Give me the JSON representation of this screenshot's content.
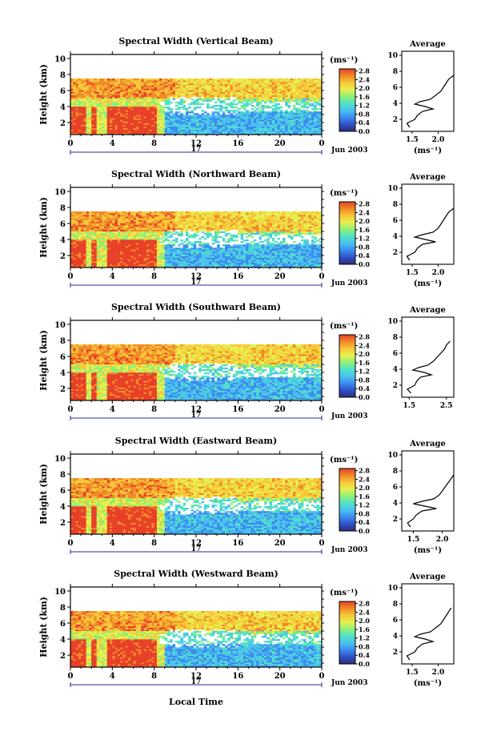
{
  "chart_data": [
    {
      "type": "heatmap",
      "title": "Spectral Width (Vertical Beam)",
      "ylabel": "Height (km)",
      "ylim": [
        0.5,
        10.5
      ],
      "yticks": [
        "10",
        "8",
        "6",
        "4",
        "2"
      ],
      "xlim": [
        0,
        24
      ],
      "xticks": [
        "0",
        "4",
        "8",
        "12",
        "16",
        "20",
        "0"
      ],
      "date_day": "17",
      "date_label": "Jun 2003",
      "colorbar_unit": "(ms⁻¹)",
      "colorbar_ticks": [
        "2.8",
        "2.4",
        "2.0",
        "1.6",
        "1.2",
        "0.8",
        "0.4",
        "0.0"
      ],
      "avg_title": "Average",
      "avg_xticks": [
        "1.5",
        "2.0"
      ],
      "avg_xlim": [
        1.3,
        2.3
      ],
      "avg_xlabel": "(ms⁻¹)",
      "avg_yticks": [
        "10",
        "8",
        "6",
        "4",
        "2"
      ],
      "avg_height": [
        1.0,
        1.5,
        2.0,
        2.5,
        3.0,
        3.3,
        3.6,
        3.9,
        4.2,
        4.5,
        5.0,
        5.5,
        6.0,
        6.5,
        7.0,
        7.5
      ],
      "avg_width": [
        1.45,
        1.4,
        1.55,
        1.6,
        1.7,
        1.9,
        1.75,
        1.55,
        1.65,
        1.85,
        1.95,
        2.05,
        2.1,
        2.15,
        2.2,
        2.3
      ]
    },
    {
      "type": "heatmap",
      "title": "Spectral Width (Northward Beam)",
      "ylabel": "Height (km)",
      "ylim": [
        0.5,
        10.5
      ],
      "yticks": [
        "10",
        "8",
        "6",
        "4",
        "2"
      ],
      "xlim": [
        0,
        24
      ],
      "xticks": [
        "0",
        "4",
        "8",
        "12",
        "16",
        "20",
        "0"
      ],
      "date_day": "17",
      "date_label": "Jun 2003",
      "colorbar_unit": "(ms⁻¹)",
      "colorbar_ticks": [
        "2.8",
        "2.4",
        "2.0",
        "1.6",
        "1.2",
        "0.8",
        "0.4",
        "0.0"
      ],
      "avg_title": "Average",
      "avg_xticks": [
        "1.5",
        "2.0"
      ],
      "avg_xlim": [
        1.3,
        2.3
      ],
      "avg_xlabel": "(ms⁻¹)",
      "avg_yticks": [
        "10",
        "8",
        "6",
        "4",
        "2"
      ],
      "avg_height": [
        1.0,
        1.5,
        2.0,
        2.5,
        3.0,
        3.3,
        3.6,
        3.9,
        4.2,
        4.5,
        5.0,
        5.5,
        6.0,
        6.5,
        7.0,
        7.5
      ],
      "avg_width": [
        1.45,
        1.4,
        1.55,
        1.6,
        1.7,
        1.95,
        1.75,
        1.55,
        1.7,
        1.9,
        2.0,
        2.05,
        2.1,
        2.15,
        2.2,
        2.3
      ]
    },
    {
      "type": "heatmap",
      "title": "Spectral Width (Southward Beam)",
      "ylabel": "Height (km)",
      "ylim": [
        0.5,
        10.5
      ],
      "yticks": [
        "10",
        "8",
        "6",
        "4",
        "2"
      ],
      "xlim": [
        0,
        24
      ],
      "xticks": [
        "0",
        "4",
        "8",
        "12",
        "16",
        "20",
        "0"
      ],
      "date_day": "17",
      "date_label": "Jun 2003",
      "colorbar_unit": "(ms⁻¹)",
      "colorbar_ticks": [
        "2.8",
        "2.4",
        "2.0",
        "1.6",
        "1.2",
        "0.8",
        "0.4",
        "0.0"
      ],
      "avg_title": "Average",
      "avg_xticks": [
        "1.5",
        "2.5"
      ],
      "avg_xlim": [
        1.3,
        2.7
      ],
      "avg_xlabel": "",
      "avg_yticks": [
        "10",
        "8",
        "6",
        "4",
        "2"
      ],
      "avg_height": [
        1.0,
        1.5,
        2.0,
        2.5,
        3.0,
        3.3,
        3.6,
        3.9,
        4.2,
        4.5,
        5.0,
        5.5,
        6.0,
        6.5,
        7.0,
        7.5
      ],
      "avg_width": [
        1.55,
        1.45,
        1.65,
        1.7,
        1.8,
        2.1,
        1.9,
        1.6,
        1.75,
        2.0,
        2.15,
        2.25,
        2.35,
        2.45,
        2.5,
        2.6
      ]
    },
    {
      "type": "heatmap",
      "title": "Spectral Width (Eastward Beam)",
      "ylabel": "Height (km)",
      "ylim": [
        0.5,
        10.5
      ],
      "yticks": [
        "10",
        "8",
        "6",
        "4",
        "2"
      ],
      "xlim": [
        0,
        24
      ],
      "xticks": [
        "0",
        "4",
        "8",
        "12",
        "16",
        "20",
        "0"
      ],
      "date_day": "17",
      "date_label": "Jun 2003",
      "colorbar_unit": "(ms⁻¹)",
      "colorbar_ticks": [
        "2.8",
        "2.4",
        "2.0",
        "1.6",
        "1.2",
        "0.8",
        "0.4",
        "0.0"
      ],
      "avg_title": "Average",
      "avg_xticks": [
        "1.5",
        "2.0"
      ],
      "avg_xlim": [
        1.3,
        2.2
      ],
      "avg_xlabel": "(ms⁻¹)",
      "avg_yticks": [
        "10",
        "8",
        "6",
        "4",
        "2"
      ],
      "avg_height": [
        1.0,
        1.5,
        2.0,
        2.5,
        3.0,
        3.3,
        3.6,
        3.9,
        4.2,
        4.5,
        5.0,
        5.5,
        6.0,
        6.5,
        7.0,
        7.5
      ],
      "avg_width": [
        1.45,
        1.4,
        1.5,
        1.55,
        1.65,
        1.9,
        1.7,
        1.5,
        1.65,
        1.85,
        1.95,
        2.0,
        2.05,
        2.1,
        2.15,
        2.2
      ]
    },
    {
      "type": "heatmap",
      "title": "Spectral Width (Westward Beam)",
      "ylabel": "Height (km)",
      "ylim": [
        0.5,
        10.5
      ],
      "yticks": [
        "10",
        "8",
        "6",
        "4",
        "2"
      ],
      "xlim": [
        0,
        24
      ],
      "xticks": [
        "0",
        "4",
        "8",
        "12",
        "16",
        "20",
        "0"
      ],
      "date_day": "17",
      "date_label": "Jun 2003",
      "colorbar_unit": "(ms⁻¹)",
      "colorbar_ticks": [
        "2.8",
        "2.4",
        "2.0",
        "1.6",
        "1.2",
        "0.8",
        "0.4",
        "0.0"
      ],
      "avg_title": "Average",
      "avg_xticks": [
        "1.5",
        "2.0"
      ],
      "avg_xlim": [
        1.3,
        2.3
      ],
      "avg_xlabel": "(ms⁻¹)",
      "avg_yticks": [
        "10",
        "8",
        "6",
        "4",
        "2"
      ],
      "avg_height": [
        1.0,
        1.5,
        2.0,
        2.5,
        3.0,
        3.3,
        3.6,
        3.9,
        4.2,
        4.5,
        5.0,
        5.5,
        6.0,
        6.5,
        7.0,
        7.5
      ],
      "avg_width": [
        1.45,
        1.4,
        1.55,
        1.6,
        1.7,
        1.9,
        1.75,
        1.55,
        1.65,
        1.85,
        1.95,
        2.05,
        2.1,
        2.15,
        2.2,
        2.25
      ]
    }
  ],
  "footer": {
    "xlabel": "Local Time"
  },
  "colors": {
    "scale": [
      "#2d2d7a",
      "#3050c8",
      "#3c8cf0",
      "#4ac0f0",
      "#50e0c8",
      "#8cf078",
      "#e6f050",
      "#f8c838",
      "#f08a28",
      "#e84028"
    ],
    "day_marker": "#2a2a9a"
  }
}
